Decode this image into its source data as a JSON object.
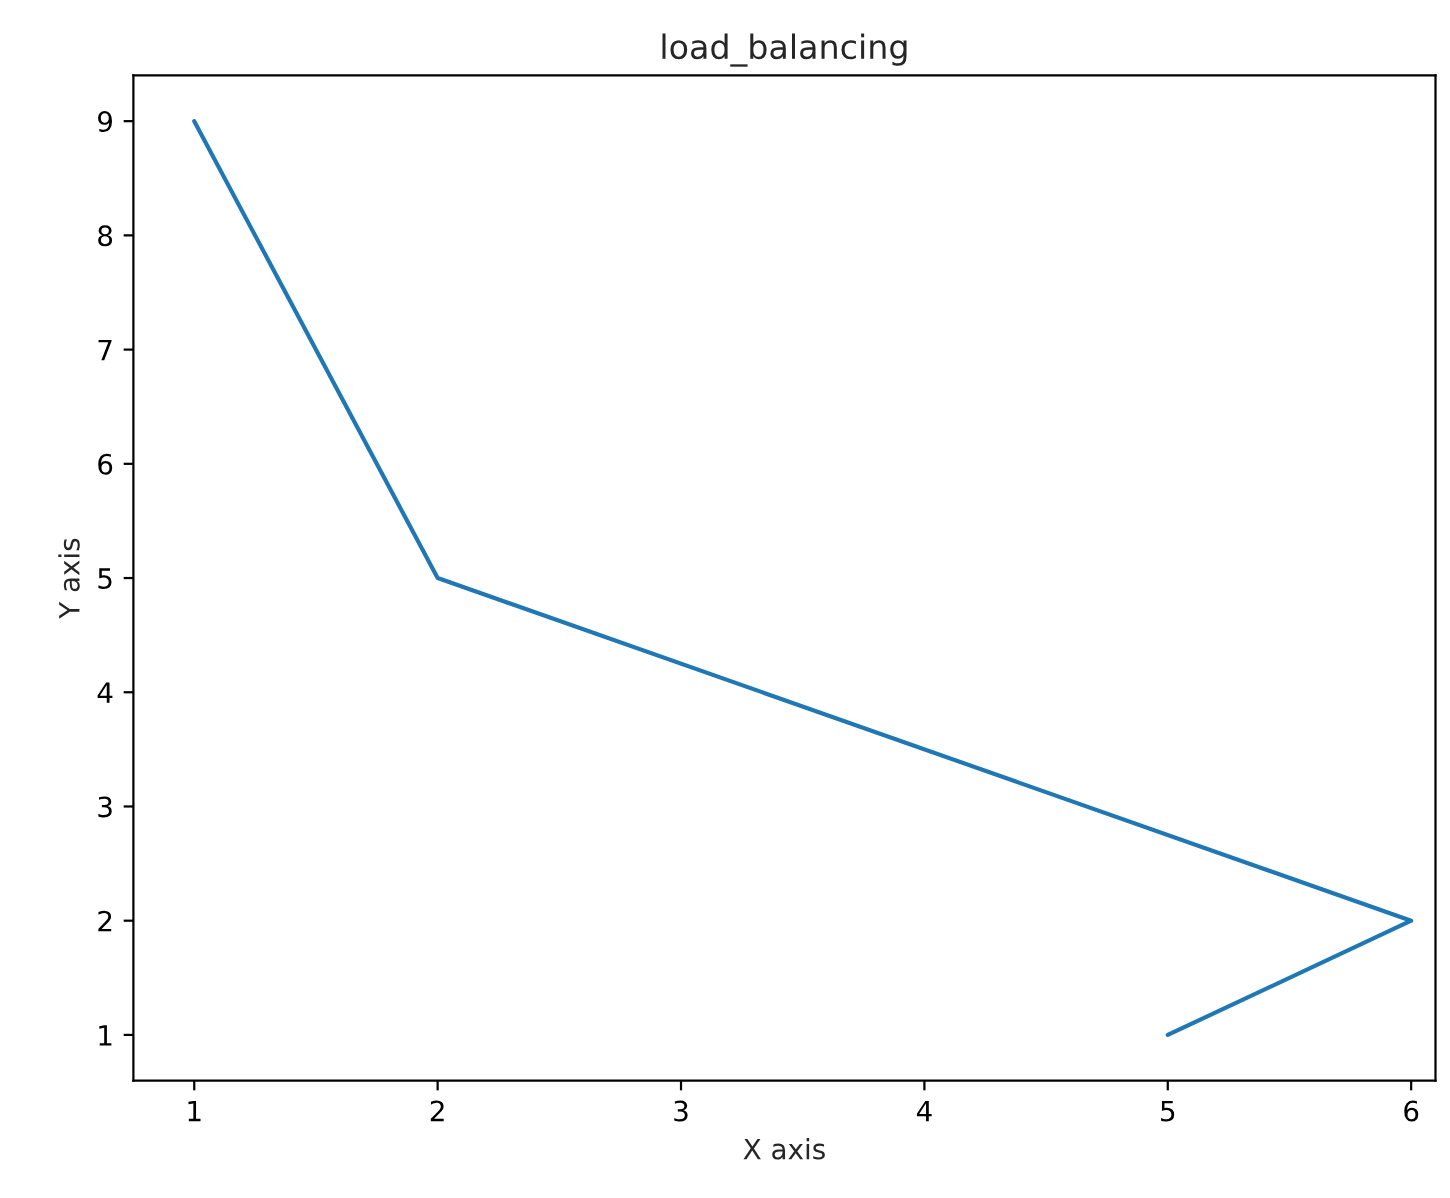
{
  "chart_data": {
    "type": "line",
    "title": "load_balancing",
    "xlabel": "X axis",
    "ylabel": "Y axis",
    "x": [
      1,
      2,
      6,
      5
    ],
    "series": [
      {
        "color": "#1f77b4",
        "values": [
          9,
          5,
          2,
          1
        ]
      }
    ],
    "xlim": [
      0.75,
      6.1
    ],
    "ylim": [
      0.6,
      9.4
    ],
    "xticks": [
      1,
      2,
      3,
      4,
      5,
      6
    ],
    "yticks": [
      1,
      2,
      3,
      4,
      5,
      6,
      7,
      8,
      9
    ],
    "grid": false,
    "legend": false
  }
}
